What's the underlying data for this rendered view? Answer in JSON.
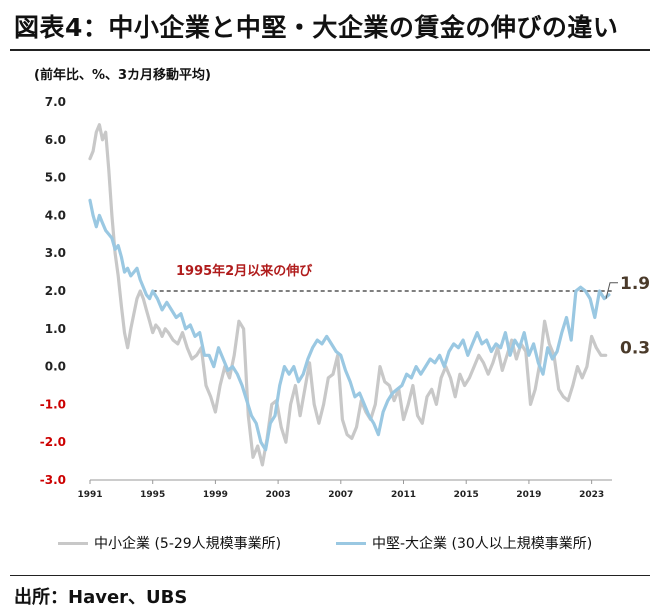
{
  "title": "図表4：中小企業と中堅・大企業の賃金の伸びの違い",
  "source": "出所：Haver、UBS",
  "chart_data": {
    "type": "line",
    "unit_label": "(前年比、%、3カ月移動平均)",
    "ylim": [
      -3.0,
      7.0
    ],
    "yticks": [
      "7.0",
      "6.0",
      "5.0",
      "4.0",
      "3.0",
      "2.0",
      "1.0",
      "0.0",
      "-1.0",
      "-2.0",
      "-3.0"
    ],
    "xticks": [
      "1991",
      "1995",
      "1999",
      "2003",
      "2007",
      "2011",
      "2015",
      "2019",
      "2023"
    ],
    "xlim": [
      1991,
      2024.3
    ],
    "annotation": "1995年2月以来の伸び",
    "reference_value": 2.0,
    "grid": false,
    "legend_position": "bottom",
    "series": [
      {
        "name": "中小企業 (5-29人規模事業所)",
        "color": "#c8c8c8",
        "end_label": "0.3",
        "x": [
          1991.0,
          1991.2,
          1991.4,
          1991.6,
          1991.8,
          1992.0,
          1992.2,
          1992.4,
          1992.6,
          1992.8,
          1993.0,
          1993.2,
          1993.4,
          1993.6,
          1993.8,
          1994.0,
          1994.2,
          1994.4,
          1994.6,
          1994.8,
          1995.0,
          1995.2,
          1995.4,
          1995.6,
          1995.8,
          1996.0,
          1996.3,
          1996.6,
          1996.9,
          1997.2,
          1997.5,
          1997.8,
          1998.1,
          1998.4,
          1998.7,
          1999.0,
          1999.3,
          1999.6,
          1999.9,
          2000.2,
          2000.5,
          2000.8,
          2001.1,
          2001.4,
          2001.7,
          2002.0,
          2002.3,
          2002.6,
          2002.9,
          2003.2,
          2003.5,
          2003.8,
          2004.1,
          2004.4,
          2004.7,
          2005.0,
          2005.3,
          2005.6,
          2005.9,
          2006.2,
          2006.5,
          2006.8,
          2007.1,
          2007.4,
          2007.7,
          2008.0,
          2008.3,
          2008.6,
          2008.9,
          2009.2,
          2009.5,
          2009.8,
          2010.1,
          2010.4,
          2010.7,
          2011.0,
          2011.3,
          2011.6,
          2011.9,
          2012.2,
          2012.5,
          2012.8,
          2013.1,
          2013.4,
          2013.7,
          2014.0,
          2014.3,
          2014.6,
          2014.9,
          2015.2,
          2015.5,
          2015.8,
          2016.1,
          2016.4,
          2016.7,
          2017.0,
          2017.3,
          2017.6,
          2017.9,
          2018.2,
          2018.5,
          2018.8,
          2019.1,
          2019.4,
          2019.7,
          2020.0,
          2020.3,
          2020.6,
          2020.9,
          2021.2,
          2021.5,
          2021.8,
          2022.1,
          2022.4,
          2022.7,
          2023.0,
          2023.3,
          2023.6,
          2023.9
        ],
        "values": [
          5.5,
          5.7,
          6.2,
          6.4,
          6.0,
          6.2,
          5.2,
          4.0,
          3.0,
          2.4,
          1.6,
          0.9,
          0.5,
          1.0,
          1.4,
          1.8,
          2.0,
          1.8,
          1.5,
          1.2,
          0.9,
          1.1,
          1.0,
          0.8,
          1.0,
          0.9,
          0.7,
          0.6,
          0.9,
          0.5,
          0.2,
          0.3,
          0.5,
          -0.5,
          -0.8,
          -1.2,
          -0.5,
          0.0,
          -0.3,
          0.3,
          1.2,
          1.0,
          -1.3,
          -2.4,
          -2.1,
          -2.6,
          -1.9,
          -1.0,
          -0.9,
          -1.6,
          -2.0,
          -1.0,
          -0.5,
          -1.3,
          -0.6,
          0.1,
          -1.0,
          -1.5,
          -1.0,
          -0.3,
          -0.2,
          0.3,
          -1.4,
          -1.8,
          -1.9,
          -1.6,
          -0.9,
          -1.2,
          -1.4,
          -1.0,
          0.0,
          -0.4,
          -0.5,
          -0.9,
          -0.6,
          -1.4,
          -1.0,
          -0.5,
          -1.3,
          -1.5,
          -0.8,
          -0.6,
          -1.0,
          -0.3,
          0.0,
          -0.3,
          -0.8,
          -0.2,
          -0.5,
          -0.3,
          0.0,
          0.3,
          0.1,
          -0.2,
          0.1,
          0.5,
          -0.1,
          0.3,
          0.7,
          0.2,
          0.6,
          0.4,
          -1.0,
          -0.6,
          0.1,
          1.2,
          0.6,
          0.3,
          -0.6,
          -0.8,
          -0.9,
          -0.5,
          0.0,
          -0.3,
          0.0,
          0.8,
          0.5,
          0.3,
          0.3
        ]
      },
      {
        "name": "中堅-大企業 (30人以上規模事業所)",
        "color": "#9ac8e2",
        "end_label": "1.9",
        "x": [
          1991.0,
          1991.2,
          1991.4,
          1991.6,
          1991.8,
          1992.0,
          1992.2,
          1992.4,
          1992.6,
          1992.8,
          1993.0,
          1993.2,
          1993.4,
          1993.6,
          1993.8,
          1994.0,
          1994.2,
          1994.4,
          1994.6,
          1994.8,
          1995.0,
          1995.3,
          1995.6,
          1995.9,
          1996.2,
          1996.5,
          1996.8,
          1997.1,
          1997.4,
          1997.7,
          1998.0,
          1998.3,
          1998.6,
          1998.9,
          1999.2,
          1999.5,
          1999.8,
          2000.1,
          2000.4,
          2000.7,
          2001.0,
          2001.3,
          2001.6,
          2001.9,
          2002.2,
          2002.5,
          2002.8,
          2003.1,
          2003.4,
          2003.7,
          2004.0,
          2004.3,
          2004.6,
          2004.9,
          2005.2,
          2005.5,
          2005.8,
          2006.1,
          2006.4,
          2006.7,
          2007.0,
          2007.3,
          2007.6,
          2007.9,
          2008.2,
          2008.5,
          2008.8,
          2009.1,
          2009.4,
          2009.7,
          2010.0,
          2010.3,
          2010.6,
          2010.9,
          2011.2,
          2011.5,
          2011.8,
          2012.1,
          2012.4,
          2012.7,
          2013.0,
          2013.3,
          2013.6,
          2013.9,
          2014.2,
          2014.5,
          2014.8,
          2015.1,
          2015.4,
          2015.7,
          2016.0,
          2016.3,
          2016.6,
          2016.9,
          2017.2,
          2017.5,
          2017.8,
          2018.1,
          2018.4,
          2018.7,
          2019.0,
          2019.3,
          2019.6,
          2019.9,
          2020.2,
          2020.5,
          2020.8,
          2021.1,
          2021.4,
          2021.7,
          2022.0,
          2022.3,
          2022.6,
          2022.9,
          2023.2,
          2023.5,
          2023.8,
          2024.1
        ],
        "values": [
          4.4,
          4.0,
          3.7,
          4.0,
          3.8,
          3.6,
          3.5,
          3.4,
          3.1,
          3.2,
          2.9,
          2.5,
          2.6,
          2.4,
          2.5,
          2.6,
          2.3,
          2.1,
          1.9,
          1.8,
          2.0,
          1.8,
          1.5,
          1.7,
          1.5,
          1.3,
          1.4,
          1.0,
          1.1,
          0.8,
          0.9,
          0.3,
          0.3,
          0.0,
          0.5,
          0.2,
          -0.1,
          0.0,
          -0.2,
          -0.5,
          -0.9,
          -1.3,
          -1.5,
          -2.0,
          -2.2,
          -1.5,
          -1.3,
          -0.5,
          0.0,
          -0.2,
          0.0,
          -0.4,
          -0.2,
          0.2,
          0.5,
          0.7,
          0.6,
          0.8,
          0.6,
          0.4,
          0.3,
          -0.1,
          -0.4,
          -0.8,
          -0.7,
          -1.0,
          -1.3,
          -1.5,
          -1.8,
          -1.2,
          -0.9,
          -0.7,
          -0.6,
          -0.5,
          -0.2,
          -0.3,
          0.0,
          -0.2,
          0.0,
          0.2,
          0.1,
          0.3,
          0.0,
          0.4,
          0.6,
          0.5,
          0.7,
          0.3,
          0.6,
          0.9,
          0.6,
          0.7,
          0.4,
          0.6,
          0.5,
          0.9,
          0.3,
          0.7,
          0.5,
          0.9,
          0.3,
          0.6,
          0.1,
          -0.2,
          0.5,
          0.2,
          0.4,
          0.9,
          1.3,
          0.7,
          2.0,
          2.1,
          2.0,
          1.8,
          1.3,
          2.0,
          1.8,
          1.9
        ]
      }
    ]
  }
}
